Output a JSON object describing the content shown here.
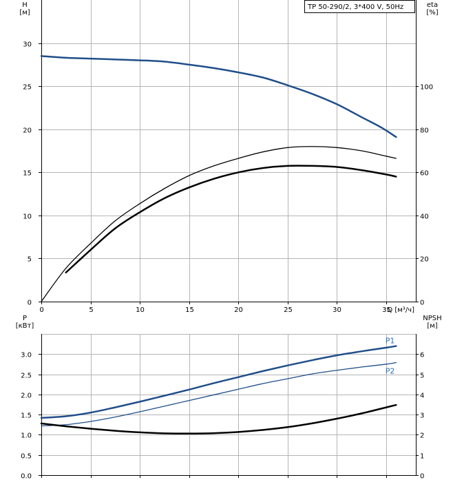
{
  "chart_data": [
    {
      "type": "line",
      "legend": "TP 50-290/2, 3*400 V, 50Hz",
      "xlabel": "Q [м³/ч]",
      "ylabel_left": [
        "H",
        "[м]"
      ],
      "ylabel_right": [
        "eta",
        "[%]"
      ],
      "xlim": [
        0,
        38
      ],
      "xticks": [
        0,
        5,
        10,
        15,
        20,
        25,
        30,
        35
      ],
      "ylim_left": [
        0,
        35
      ],
      "yticks_left": [
        0,
        5,
        10,
        15,
        20,
        25,
        30
      ],
      "ylim_right": [
        0,
        140
      ],
      "yticks_right": [
        0,
        20,
        40,
        60,
        80,
        100
      ],
      "grid": true,
      "series": [
        {
          "axis": "left",
          "color": "#1f4e89",
          "stroke_width": 2.5,
          "points": [
            [
              0,
              28.5
            ],
            [
              2.5,
              28.3
            ],
            [
              5,
              28.2
            ],
            [
              7.5,
              28.1
            ],
            [
              10,
              28
            ],
            [
              12.5,
              27.85
            ],
            [
              15,
              27.5
            ],
            [
              17.5,
              27.1
            ],
            [
              20,
              26.6
            ],
            [
              22.5,
              26
            ],
            [
              25,
              25.1
            ],
            [
              27.5,
              24.1
            ],
            [
              30,
              22.9
            ],
            [
              32.5,
              21.4
            ],
            [
              34.5,
              20.2
            ],
            [
              36,
              19.1
            ]
          ]
        },
        {
          "axis": "right",
          "color": "#000000",
          "stroke_width": 1.3,
          "points": [
            [
              0,
              0
            ],
            [
              2.5,
              15.5
            ],
            [
              5,
              27
            ],
            [
              7.5,
              37.5
            ],
            [
              10,
              45.5
            ],
            [
              12.5,
              52.5
            ],
            [
              15,
              58.5
            ],
            [
              17.5,
              63
            ],
            [
              20,
              66.5
            ],
            [
              22.5,
              69.5
            ],
            [
              25,
              71.5
            ],
            [
              27.5,
              72
            ],
            [
              30,
              71.5
            ],
            [
              32.5,
              70
            ],
            [
              35,
              67.5
            ],
            [
              36,
              66.5
            ]
          ]
        },
        {
          "axis": "right",
          "color": "#000000",
          "stroke_width": 2.5,
          "points": [
            [
              2.5,
              13.5
            ],
            [
              5,
              24
            ],
            [
              7.5,
              34
            ],
            [
              10,
              41.5
            ],
            [
              12.5,
              48
            ],
            [
              15,
              53
            ],
            [
              17.5,
              57
            ],
            [
              20,
              60
            ],
            [
              22.5,
              62
            ],
            [
              25,
              63
            ],
            [
              27.5,
              63
            ],
            [
              30,
              62.5
            ],
            [
              32.5,
              61
            ],
            [
              35,
              59
            ],
            [
              36,
              58
            ]
          ]
        }
      ]
    },
    {
      "type": "line",
      "ylabel_left": [
        "P",
        "[кВт]"
      ],
      "ylabel_right": [
        "NPSH",
        "[м]"
      ],
      "xlim": [
        0,
        38
      ],
      "xticks": [
        0,
        5,
        10,
        15,
        20,
        25,
        30,
        35
      ],
      "ylim_left": [
        0,
        3.5
      ],
      "yticks_left": [
        0.0,
        0.5,
        1.0,
        1.5,
        2.0,
        2.5,
        3.0
      ],
      "yticklabels_left": [
        "0.0",
        "0.5",
        "1.0",
        "1.5",
        "2.0",
        "2.5",
        "3.0"
      ],
      "ylim_right": [
        0,
        7
      ],
      "yticks_right": [
        0,
        1,
        2,
        3,
        4,
        5,
        6
      ],
      "grid": true,
      "series": [
        {
          "name": "P1",
          "axis": "left",
          "color": "#1f4e89",
          "label_color": "#2b6cb0",
          "stroke_width": 2.5,
          "points": [
            [
              0,
              1.42
            ],
            [
              2.5,
              1.46
            ],
            [
              5,
              1.55
            ],
            [
              7.5,
              1.68
            ],
            [
              10,
              1.82
            ],
            [
              12.5,
              1.97
            ],
            [
              15,
              2.12
            ],
            [
              17.5,
              2.28
            ],
            [
              20,
              2.43
            ],
            [
              22.5,
              2.58
            ],
            [
              25,
              2.72
            ],
            [
              27.5,
              2.85
            ],
            [
              30,
              2.97
            ],
            [
              32.5,
              3.07
            ],
            [
              35,
              3.16
            ],
            [
              36,
              3.2
            ]
          ]
        },
        {
          "name": "P2",
          "axis": "left",
          "color": "#1f4e89",
          "label_color": "#2b6cb0",
          "stroke_width": 1.3,
          "points": [
            [
              0,
              1.22
            ],
            [
              2.5,
              1.25
            ],
            [
              5,
              1.33
            ],
            [
              7.5,
              1.44
            ],
            [
              10,
              1.57
            ],
            [
              12.5,
              1.71
            ],
            [
              15,
              1.85
            ],
            [
              17.5,
              1.99
            ],
            [
              20,
              2.13
            ],
            [
              22.5,
              2.27
            ],
            [
              25,
              2.39
            ],
            [
              27.5,
              2.51
            ],
            [
              30,
              2.6
            ],
            [
              32.5,
              2.68
            ],
            [
              35,
              2.75
            ],
            [
              36,
              2.79
            ]
          ]
        },
        {
          "axis": "right",
          "color": "#000000",
          "stroke_width": 2.5,
          "points": [
            [
              0,
              2.56
            ],
            [
              2.5,
              2.42
            ],
            [
              5,
              2.3
            ],
            [
              7.5,
              2.2
            ],
            [
              10,
              2.12
            ],
            [
              12.5,
              2.07
            ],
            [
              15,
              2.06
            ],
            [
              17.5,
              2.08
            ],
            [
              20,
              2.14
            ],
            [
              22.5,
              2.24
            ],
            [
              25,
              2.38
            ],
            [
              27.5,
              2.57
            ],
            [
              30,
              2.8
            ],
            [
              32.5,
              3.06
            ],
            [
              35,
              3.36
            ],
            [
              36,
              3.48
            ]
          ]
        }
      ]
    }
  ]
}
